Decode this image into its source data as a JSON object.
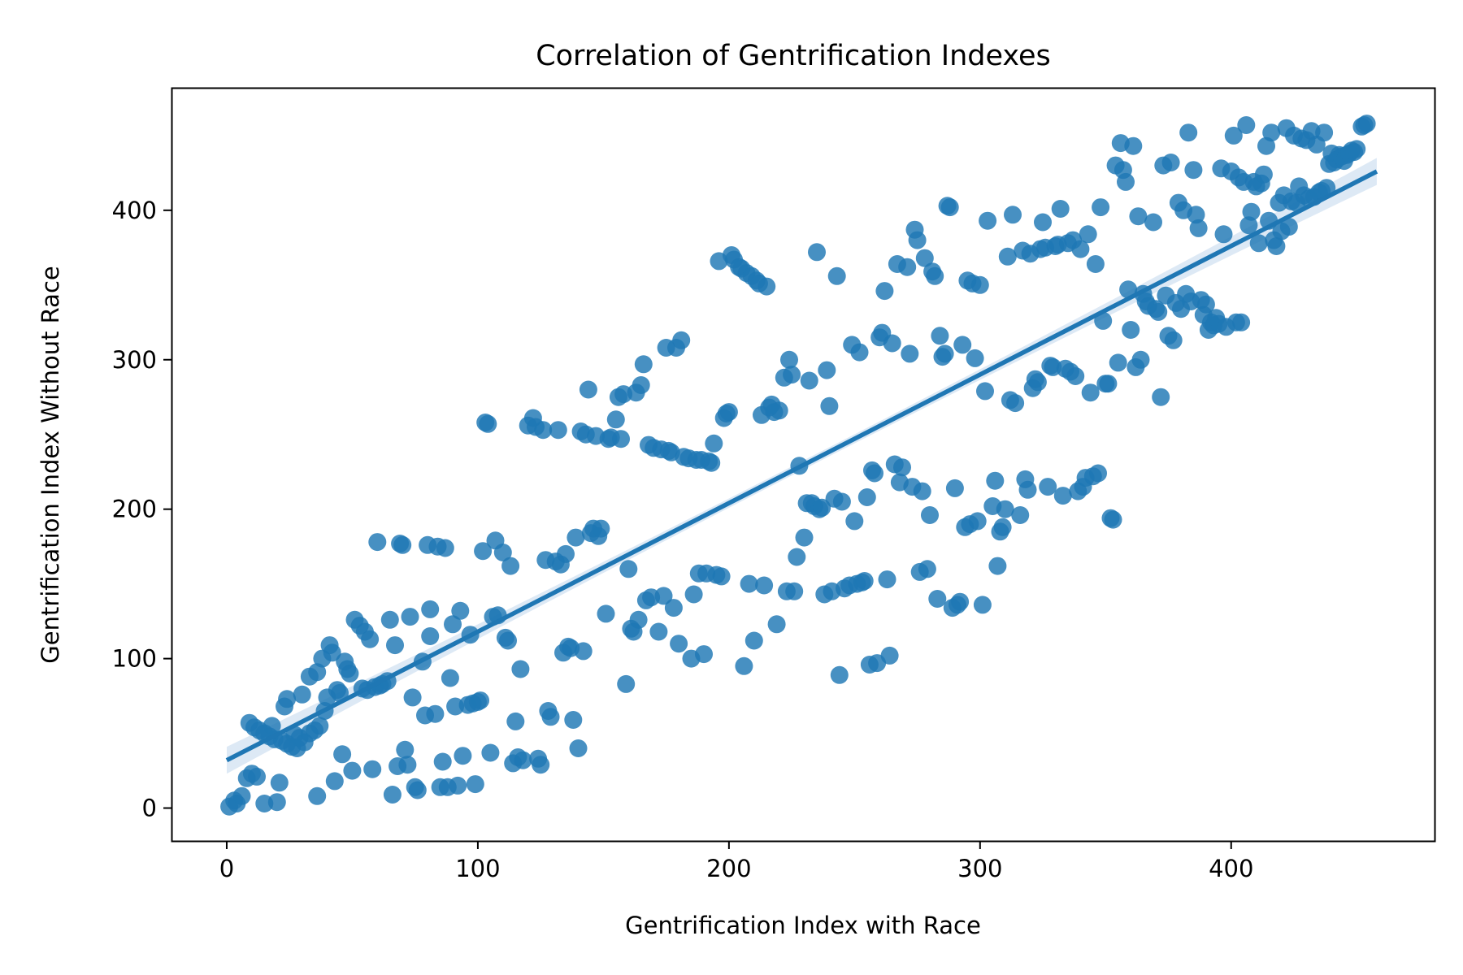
{
  "chart_data": {
    "type": "scatter",
    "title": "Correlation of Gentrification Indexes",
    "xlabel": "Gentrification Index with Race",
    "ylabel": "Gentrification Index Without Race",
    "xlim": [
      -22,
      481
    ],
    "ylim": [
      -22,
      482
    ],
    "xticks": [
      0,
      100,
      200,
      300,
      400
    ],
    "yticks": [
      0,
      100,
      200,
      300,
      400
    ],
    "grid": false,
    "legend": "none",
    "colors": {
      "points": "#1f77b4",
      "line": "#1f77b4",
      "band": "#c6dbef",
      "frame": "#000000"
    },
    "regression": {
      "x": [
        0,
        458
      ],
      "y": [
        32,
        426
      ],
      "band_halfwidth_ends": 9,
      "band_halfwidth_mid": 3
    },
    "points": [
      [
        1,
        1
      ],
      [
        3,
        5
      ],
      [
        4,
        3
      ],
      [
        6,
        8
      ],
      [
        8,
        20
      ],
      [
        10,
        23
      ],
      [
        12,
        21
      ],
      [
        9,
        57
      ],
      [
        11,
        54
      ],
      [
        13,
        52
      ],
      [
        15,
        50
      ],
      [
        17,
        48
      ],
      [
        19,
        46
      ],
      [
        18,
        55
      ],
      [
        22,
        45
      ],
      [
        24,
        43
      ],
      [
        26,
        41
      ],
      [
        28,
        40
      ],
      [
        15,
        3
      ],
      [
        20,
        4
      ],
      [
        21,
        17
      ],
      [
        23,
        68
      ],
      [
        24,
        73
      ],
      [
        27,
        49
      ],
      [
        29,
        47
      ],
      [
        30,
        76
      ],
      [
        31,
        44
      ],
      [
        33,
        50
      ],
      [
        33,
        88
      ],
      [
        35,
        52
      ],
      [
        36,
        8
      ],
      [
        36,
        91
      ],
      [
        37,
        55
      ],
      [
        38,
        100
      ],
      [
        39,
        65
      ],
      [
        40,
        74
      ],
      [
        41,
        109
      ],
      [
        42,
        104
      ],
      [
        43,
        18
      ],
      [
        44,
        79
      ],
      [
        45,
        77
      ],
      [
        46,
        36
      ],
      [
        47,
        98
      ],
      [
        48,
        93
      ],
      [
        49,
        90
      ],
      [
        50,
        25
      ],
      [
        51,
        126
      ],
      [
        53,
        122
      ],
      [
        54,
        80
      ],
      [
        55,
        118
      ],
      [
        56,
        79
      ],
      [
        57,
        113
      ],
      [
        58,
        26
      ],
      [
        59,
        81
      ],
      [
        60,
        178
      ],
      [
        61,
        82
      ],
      [
        62,
        83
      ],
      [
        64,
        85
      ],
      [
        65,
        126
      ],
      [
        66,
        9
      ],
      [
        67,
        109
      ],
      [
        68,
        28
      ],
      [
        69,
        177
      ],
      [
        70,
        176
      ],
      [
        71,
        39
      ],
      [
        72,
        29
      ],
      [
        73,
        128
      ],
      [
        74,
        74
      ],
      [
        75,
        14
      ],
      [
        76,
        12
      ],
      [
        78,
        98
      ],
      [
        79,
        62
      ],
      [
        80,
        176
      ],
      [
        81,
        115
      ],
      [
        81,
        133
      ],
      [
        83,
        63
      ],
      [
        84,
        175
      ],
      [
        85,
        14
      ],
      [
        86,
        31
      ],
      [
        87,
        174
      ],
      [
        88,
        14
      ],
      [
        89,
        87
      ],
      [
        90,
        123
      ],
      [
        91,
        68
      ],
      [
        92,
        15
      ],
      [
        93,
        132
      ],
      [
        94,
        35
      ],
      [
        96,
        69
      ],
      [
        97,
        116
      ],
      [
        98,
        70
      ],
      [
        99,
        16
      ],
      [
        100,
        71
      ],
      [
        101,
        72
      ],
      [
        102,
        172
      ],
      [
        103,
        258
      ],
      [
        104,
        257
      ],
      [
        105,
        37
      ],
      [
        106,
        128
      ],
      [
        107,
        179
      ],
      [
        108,
        129
      ],
      [
        110,
        171
      ],
      [
        111,
        114
      ],
      [
        112,
        112
      ],
      [
        113,
        162
      ],
      [
        114,
        30
      ],
      [
        115,
        58
      ],
      [
        116,
        34
      ],
      [
        117,
        93
      ],
      [
        118,
        32
      ],
      [
        120,
        256
      ],
      [
        122,
        261
      ],
      [
        123,
        255
      ],
      [
        124,
        33
      ],
      [
        125,
        29
      ],
      [
        126,
        253
      ],
      [
        127,
        166
      ],
      [
        128,
        65
      ],
      [
        129,
        61
      ],
      [
        131,
        165
      ],
      [
        132,
        253
      ],
      [
        133,
        163
      ],
      [
        134,
        104
      ],
      [
        135,
        170
      ],
      [
        136,
        108
      ],
      [
        137,
        107
      ],
      [
        138,
        59
      ],
      [
        139,
        181
      ],
      [
        140,
        40
      ],
      [
        141,
        252
      ],
      [
        142,
        105
      ],
      [
        143,
        250
      ],
      [
        144,
        280
      ],
      [
        145,
        184
      ],
      [
        146,
        187
      ],
      [
        147,
        249
      ],
      [
        148,
        182
      ],
      [
        149,
        187
      ],
      [
        151,
        130
      ],
      [
        152,
        247
      ],
      [
        153,
        248
      ],
      [
        155,
        260
      ],
      [
        156,
        275
      ],
      [
        157,
        247
      ],
      [
        158,
        277
      ],
      [
        159,
        83
      ],
      [
        160,
        160
      ],
      [
        161,
        120
      ],
      [
        162,
        118
      ],
      [
        163,
        278
      ],
      [
        164,
        126
      ],
      [
        165,
        283
      ],
      [
        166,
        297
      ],
      [
        167,
        139
      ],
      [
        168,
        243
      ],
      [
        169,
        141
      ],
      [
        170,
        241
      ],
      [
        172,
        118
      ],
      [
        173,
        240
      ],
      [
        174,
        142
      ],
      [
        175,
        308
      ],
      [
        176,
        239
      ],
      [
        177,
        238
      ],
      [
        178,
        134
      ],
      [
        179,
        308
      ],
      [
        180,
        110
      ],
      [
        181,
        313
      ],
      [
        182,
        235
      ],
      [
        184,
        234
      ],
      [
        185,
        100
      ],
      [
        186,
        143
      ],
      [
        187,
        233
      ],
      [
        188,
        157
      ],
      [
        189,
        233
      ],
      [
        190,
        103
      ],
      [
        191,
        157
      ],
      [
        192,
        232
      ],
      [
        193,
        231
      ],
      [
        194,
        244
      ],
      [
        195,
        156
      ],
      [
        196,
        366
      ],
      [
        197,
        155
      ],
      [
        198,
        261
      ],
      [
        199,
        264
      ],
      [
        200,
        265
      ],
      [
        201,
        370
      ],
      [
        202,
        367
      ],
      [
        204,
        362
      ],
      [
        205,
        361
      ],
      [
        206,
        95
      ],
      [
        207,
        358
      ],
      [
        208,
        150
      ],
      [
        209,
        356
      ],
      [
        210,
        112
      ],
      [
        211,
        353
      ],
      [
        212,
        351
      ],
      [
        213,
        263
      ],
      [
        214,
        149
      ],
      [
        215,
        349
      ],
      [
        216,
        268
      ],
      [
        217,
        270
      ],
      [
        218,
        265
      ],
      [
        219,
        123
      ],
      [
        220,
        266
      ],
      [
        222,
        288
      ],
      [
        223,
        145
      ],
      [
        224,
        300
      ],
      [
        225,
        290
      ],
      [
        226,
        145
      ],
      [
        227,
        168
      ],
      [
        228,
        229
      ],
      [
        230,
        181
      ],
      [
        231,
        204
      ],
      [
        232,
        286
      ],
      [
        233,
        204
      ],
      [
        234,
        202
      ],
      [
        235,
        372
      ],
      [
        236,
        200
      ],
      [
        237,
        201
      ],
      [
        238,
        143
      ],
      [
        239,
        293
      ],
      [
        240,
        269
      ],
      [
        241,
        145
      ],
      [
        242,
        207
      ],
      [
        243,
        356
      ],
      [
        244,
        89
      ],
      [
        245,
        205
      ],
      [
        246,
        147
      ],
      [
        248,
        149
      ],
      [
        249,
        310
      ],
      [
        250,
        192
      ],
      [
        251,
        150
      ],
      [
        252,
        305
      ],
      [
        253,
        151
      ],
      [
        254,
        152
      ],
      [
        255,
        208
      ],
      [
        256,
        96
      ],
      [
        257,
        226
      ],
      [
        258,
        224
      ],
      [
        259,
        97
      ],
      [
        260,
        315
      ],
      [
        261,
        318
      ],
      [
        262,
        346
      ],
      [
        263,
        153
      ],
      [
        264,
        102
      ],
      [
        265,
        311
      ],
      [
        266,
        230
      ],
      [
        267,
        364
      ],
      [
        268,
        218
      ],
      [
        269,
        228
      ],
      [
        271,
        362
      ],
      [
        272,
        304
      ],
      [
        273,
        215
      ],
      [
        274,
        387
      ],
      [
        275,
        380
      ],
      [
        276,
        158
      ],
      [
        277,
        212
      ],
      [
        278,
        368
      ],
      [
        279,
        160
      ],
      [
        280,
        196
      ],
      [
        281,
        359
      ],
      [
        282,
        356
      ],
      [
        283,
        140
      ],
      [
        284,
        316
      ],
      [
        285,
        302
      ],
      [
        286,
        304
      ],
      [
        287,
        403
      ],
      [
        288,
        402
      ],
      [
        289,
        134
      ],
      [
        290,
        214
      ],
      [
        291,
        136
      ],
      [
        292,
        138
      ],
      [
        293,
        310
      ],
      [
        294,
        188
      ],
      [
        295,
        353
      ],
      [
        296,
        190
      ],
      [
        297,
        351
      ],
      [
        298,
        301
      ],
      [
        299,
        192
      ],
      [
        300,
        350
      ],
      [
        301,
        136
      ],
      [
        302,
        279
      ],
      [
        303,
        393
      ],
      [
        305,
        202
      ],
      [
        306,
        219
      ],
      [
        307,
        162
      ],
      [
        308,
        185
      ],
      [
        309,
        188
      ],
      [
        310,
        200
      ],
      [
        311,
        369
      ],
      [
        312,
        273
      ],
      [
        313,
        397
      ],
      [
        314,
        271
      ],
      [
        316,
        196
      ],
      [
        317,
        373
      ],
      [
        318,
        220
      ],
      [
        319,
        213
      ],
      [
        320,
        371
      ],
      [
        321,
        281
      ],
      [
        322,
        287
      ],
      [
        323,
        285
      ],
      [
        324,
        374
      ],
      [
        325,
        392
      ],
      [
        326,
        375
      ],
      [
        327,
        215
      ],
      [
        328,
        296
      ],
      [
        329,
        295
      ],
      [
        330,
        376
      ],
      [
        331,
        377
      ],
      [
        332,
        401
      ],
      [
        333,
        209
      ],
      [
        334,
        294
      ],
      [
        335,
        378
      ],
      [
        336,
        292
      ],
      [
        337,
        380
      ],
      [
        338,
        289
      ],
      [
        339,
        212
      ],
      [
        340,
        374
      ],
      [
        341,
        215
      ],
      [
        342,
        221
      ],
      [
        343,
        384
      ],
      [
        344,
        278
      ],
      [
        345,
        222
      ],
      [
        346,
        364
      ],
      [
        347,
        224
      ],
      [
        348,
        402
      ],
      [
        349,
        326
      ],
      [
        350,
        284
      ],
      [
        351,
        284
      ],
      [
        352,
        194
      ],
      [
        353,
        193
      ],
      [
        354,
        430
      ],
      [
        355,
        298
      ],
      [
        356,
        445
      ],
      [
        357,
        427
      ],
      [
        358,
        419
      ],
      [
        359,
        347
      ],
      [
        360,
        320
      ],
      [
        361,
        443
      ],
      [
        362,
        295
      ],
      [
        363,
        396
      ],
      [
        364,
        300
      ],
      [
        365,
        344
      ],
      [
        366,
        339
      ],
      [
        367,
        336
      ],
      [
        369,
        392
      ],
      [
        370,
        334
      ],
      [
        371,
        332
      ],
      [
        372,
        275
      ],
      [
        373,
        430
      ],
      [
        374,
        343
      ],
      [
        375,
        316
      ],
      [
        376,
        432
      ],
      [
        377,
        313
      ],
      [
        378,
        338
      ],
      [
        379,
        405
      ],
      [
        380,
        334
      ],
      [
        381,
        400
      ],
      [
        382,
        344
      ],
      [
        383,
        452
      ],
      [
        384,
        339
      ],
      [
        385,
        427
      ],
      [
        386,
        397
      ],
      [
        387,
        388
      ],
      [
        388,
        340
      ],
      [
        389,
        330
      ],
      [
        390,
        337
      ],
      [
        391,
        320
      ],
      [
        392,
        325
      ],
      [
        393,
        323
      ],
      [
        394,
        328
      ],
      [
        395,
        324
      ],
      [
        396,
        428
      ],
      [
        397,
        384
      ],
      [
        398,
        322
      ],
      [
        400,
        426
      ],
      [
        401,
        450
      ],
      [
        402,
        325
      ],
      [
        403,
        422
      ],
      [
        404,
        325
      ],
      [
        405,
        419
      ],
      [
        406,
        457
      ],
      [
        407,
        390
      ],
      [
        408,
        399
      ],
      [
        409,
        419
      ],
      [
        410,
        416
      ],
      [
        411,
        378
      ],
      [
        412,
        418
      ],
      [
        413,
        424
      ],
      [
        414,
        443
      ],
      [
        415,
        393
      ],
      [
        416,
        452
      ],
      [
        417,
        380
      ],
      [
        418,
        376
      ],
      [
        419,
        405
      ],
      [
        420,
        386
      ],
      [
        421,
        410
      ],
      [
        422,
        455
      ],
      [
        423,
        389
      ],
      [
        424,
        406
      ],
      [
        425,
        450
      ],
      [
        426,
        405
      ],
      [
        427,
        416
      ],
      [
        428,
        448
      ],
      [
        429,
        410
      ],
      [
        430,
        447
      ],
      [
        431,
        408
      ],
      [
        432,
        453
      ],
      [
        433,
        409
      ],
      [
        434,
        444
      ],
      [
        435,
        412
      ],
      [
        436,
        413
      ],
      [
        437,
        452
      ],
      [
        438,
        415
      ],
      [
        439,
        431
      ],
      [
        440,
        438
      ],
      [
        441,
        432
      ],
      [
        442,
        434
      ],
      [
        443,
        437
      ],
      [
        444,
        436
      ],
      [
        445,
        433
      ],
      [
        446,
        437
      ],
      [
        447,
        438
      ],
      [
        448,
        440
      ],
      [
        449,
        439
      ],
      [
        450,
        441
      ],
      [
        452,
        456
      ],
      [
        453,
        457
      ],
      [
        454,
        458
      ]
    ]
  }
}
